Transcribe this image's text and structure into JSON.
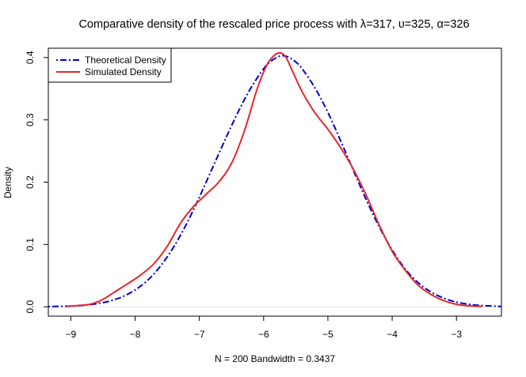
{
  "chart_data": {
    "type": "line",
    "title": "Comparative density of the rescaled price process with λ=317, υ=325, α=326",
    "xlabel": "N = 200   Bandwidth = 0.3437",
    "ylabel": "Density",
    "xlim": [
      -9.35,
      -2.3
    ],
    "ylim": [
      -0.015,
      0.415
    ],
    "x_ticks": [
      -9,
      -8,
      -7,
      -6,
      -5,
      -4,
      -3
    ],
    "y_ticks": [
      0.0,
      0.1,
      0.2,
      0.3,
      0.4
    ],
    "x_tick_labels": [
      "−9",
      "−8",
      "−7",
      "−6",
      "−5",
      "−4",
      "−3"
    ],
    "y_tick_labels": [
      "0.0",
      "0.1",
      "0.2",
      "0.3",
      "0.4"
    ],
    "legend_position": "top-left",
    "grid": false,
    "series": [
      {
        "name": "Theoretical Density",
        "color": "#0000CD",
        "style": "dashdot",
        "x": [
          -9.35,
          -9.0,
          -8.8,
          -8.6,
          -8.4,
          -8.2,
          -8.0,
          -7.8,
          -7.6,
          -7.4,
          -7.2,
          -7.0,
          -6.8,
          -6.6,
          -6.4,
          -6.2,
          -6.0,
          -5.9,
          -5.8,
          -5.7,
          -5.6,
          -5.5,
          -5.4,
          -5.2,
          -5.0,
          -4.8,
          -4.6,
          -4.4,
          -4.2,
          -4.0,
          -3.8,
          -3.6,
          -3.4,
          -3.2,
          -3.0,
          -2.8,
          -2.6,
          -2.3
        ],
        "y": [
          0.0003,
          0.0012,
          0.0025,
          0.005,
          0.009,
          0.016,
          0.027,
          0.043,
          0.066,
          0.096,
          0.133,
          0.176,
          0.222,
          0.268,
          0.312,
          0.351,
          0.382,
          0.393,
          0.4,
          0.403,
          0.4,
          0.393,
          0.382,
          0.351,
          0.312,
          0.266,
          0.218,
          0.171,
          0.128,
          0.091,
          0.061,
          0.039,
          0.024,
          0.014,
          0.0075,
          0.004,
          0.002,
          0.0006
        ]
      },
      {
        "name": "Simulated Density",
        "color": "#E8262A",
        "style": "solid",
        "x": [
          -9.07,
          -8.9,
          -8.7,
          -8.5,
          -8.3,
          -8.1,
          -7.9,
          -7.7,
          -7.5,
          -7.3,
          -7.1,
          -6.9,
          -6.7,
          -6.5,
          -6.3,
          -6.1,
          -5.95,
          -5.85,
          -5.78,
          -5.72,
          -5.65,
          -5.55,
          -5.4,
          -5.2,
          -5.0,
          -4.8,
          -4.6,
          -4.4,
          -4.2,
          -4.0,
          -3.8,
          -3.6,
          -3.4,
          -3.2,
          -3.0,
          -2.8,
          -2.6
        ],
        "y": [
          0.0005,
          0.002,
          0.004,
          0.012,
          0.025,
          0.038,
          0.052,
          0.07,
          0.097,
          0.133,
          0.16,
          0.18,
          0.2,
          0.23,
          0.282,
          0.35,
          0.388,
          0.402,
          0.407,
          0.407,
          0.4,
          0.378,
          0.345,
          0.311,
          0.285,
          0.255,
          0.22,
          0.178,
          0.131,
          0.089,
          0.059,
          0.035,
          0.02,
          0.01,
          0.004,
          0.0015,
          0.0005
        ]
      }
    ]
  }
}
